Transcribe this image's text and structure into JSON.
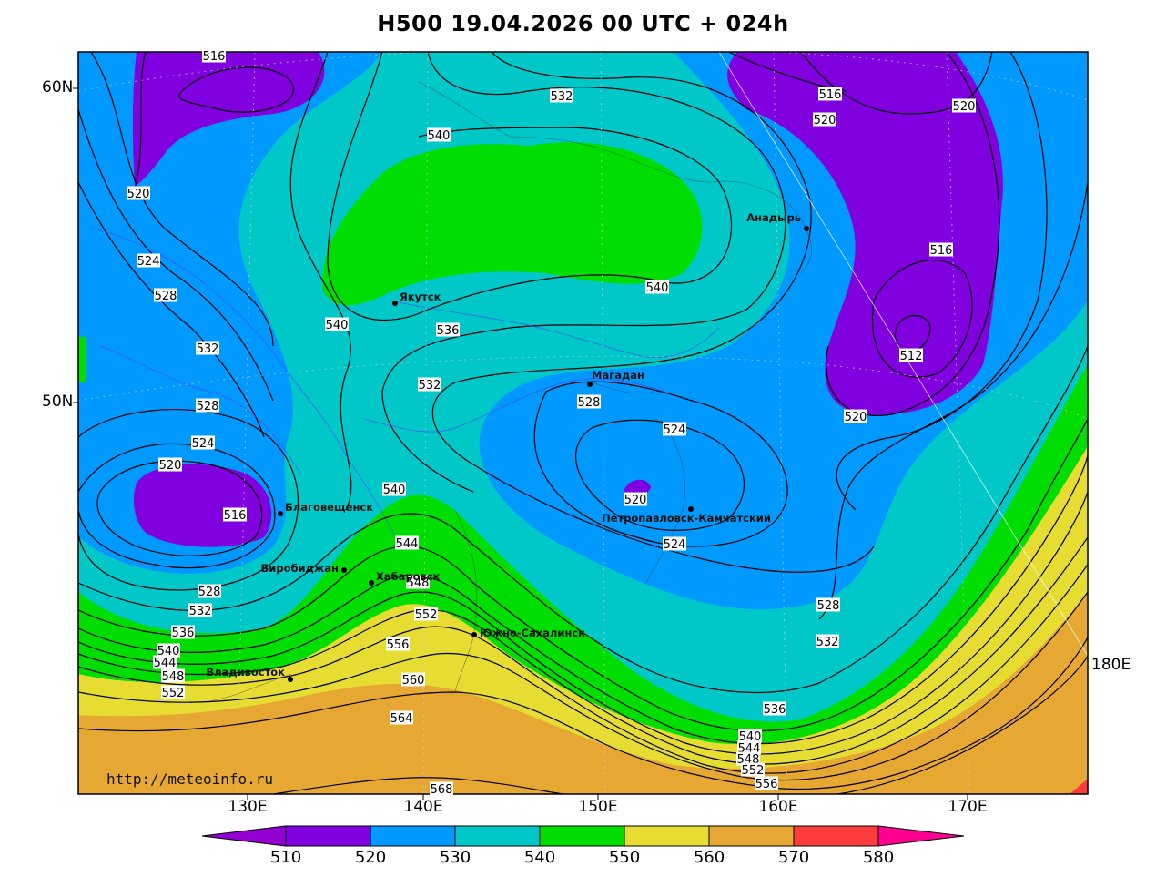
{
  "title": "H500  19.04.2026 00 UTC + 024h",
  "map": {
    "source_url": "http://meteoinfo.ru",
    "lat_labels": [
      "60N",
      "50N"
    ],
    "lon_labels": [
      "130E",
      "140E",
      "150E",
      "160E",
      "170E"
    ],
    "edge_label": "180E",
    "cities": [
      {
        "name": "Якутск"
      },
      {
        "name": "Магадан"
      },
      {
        "name": "Анадырь"
      },
      {
        "name": "Благовещенск"
      },
      {
        "name": "Биробиджан"
      },
      {
        "name": "Хабаровск"
      },
      {
        "name": "Южно-Сахалинск"
      },
      {
        "name": "Петропавловск-Камчатский"
      },
      {
        "name": "Владивосток"
      }
    ],
    "contour_labels": [
      "516",
      "520",
      "524",
      "528",
      "532",
      "536",
      "540",
      "544",
      "548",
      "552",
      "556",
      "560",
      "564",
      "568",
      "512"
    ]
  },
  "colorbar": {
    "ticks": [
      "510",
      "520",
      "530",
      "540",
      "550",
      "560",
      "570",
      "580"
    ],
    "colors": [
      "#9400d3",
      "#8000e0",
      "#0099ff",
      "#00c8c8",
      "#00dd00",
      "#e6dc32",
      "#e6a832",
      "#ff3c3c",
      "#ff0090"
    ]
  }
}
